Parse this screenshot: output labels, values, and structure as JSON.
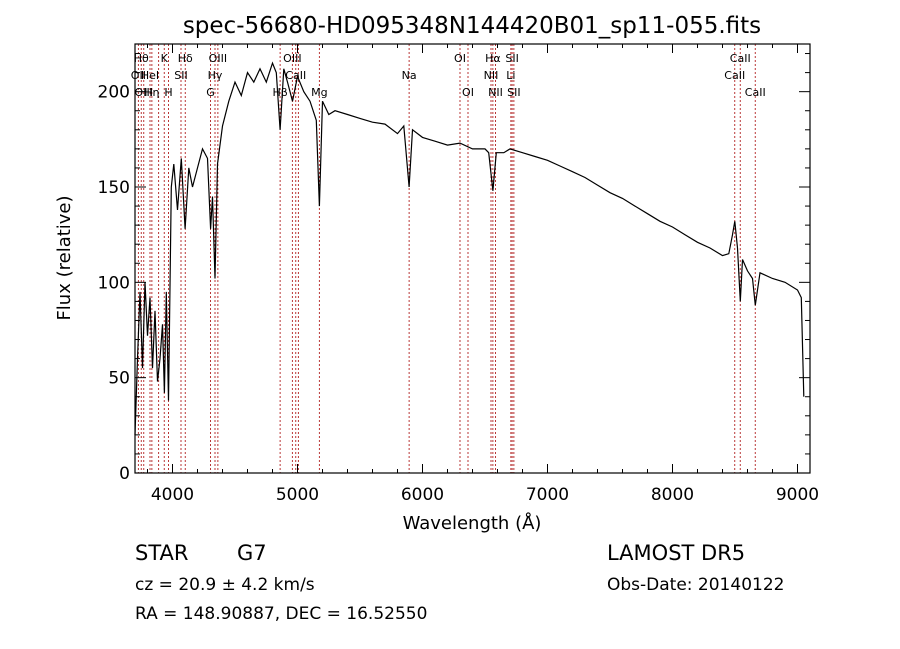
{
  "chart_data": {
    "type": "line",
    "title": "spec-56680-HD095348N144420B01_sp11-055.fits",
    "xlabel": "Wavelength (Å)",
    "ylabel": "Flux (relative)",
    "xlim": [
      3700,
      9100
    ],
    "ylim": [
      0,
      225
    ],
    "xticks": [
      4000,
      5000,
      6000,
      7000,
      8000,
      9000
    ],
    "yticks": [
      0,
      50,
      100,
      150,
      200
    ],
    "grid": false,
    "line_color": "#000000",
    "marker_color": "#b22222",
    "series": [
      {
        "x": [
          3700,
          3720,
          3740,
          3760,
          3780,
          3800,
          3820,
          3840,
          3860,
          3880,
          3900,
          3920,
          3935,
          3950,
          3968,
          3990,
          4010,
          4040,
          4070,
          4101,
          4130,
          4160,
          4200,
          4240,
          4280,
          4305,
          4320,
          4340,
          4360,
          4400,
          4450,
          4500,
          4550,
          4600,
          4650,
          4700,
          4750,
          4800,
          4830,
          4861,
          4890,
          4920,
          4960,
          5000,
          5050,
          5100,
          5150,
          5175,
          5200,
          5250,
          5300,
          5400,
          5500,
          5600,
          5700,
          5800,
          5850,
          5893,
          5920,
          6000,
          6100,
          6200,
          6300,
          6400,
          6500,
          6530,
          6563,
          6590,
          6650,
          6700,
          6800,
          6900,
          7000,
          7100,
          7200,
          7300,
          7400,
          7500,
          7600,
          7700,
          7800,
          7900,
          8000,
          8100,
          8200,
          8300,
          8400,
          8450,
          8480,
          8498,
          8520,
          8542,
          8560,
          8600,
          8640,
          8662,
          8700,
          8800,
          8900,
          9000,
          9030,
          9050
        ],
        "values": [
          20,
          60,
          95,
          55,
          100,
          72,
          92,
          55,
          85,
          48,
          60,
          78,
          42,
          95,
          38,
          150,
          162,
          138,
          165,
          128,
          160,
          150,
          160,
          170,
          165,
          128,
          145,
          102,
          162,
          182,
          195,
          205,
          198,
          210,
          205,
          212,
          205,
          215,
          210,
          180,
          212,
          205,
          195,
          208,
          200,
          195,
          185,
          140,
          195,
          188,
          190,
          188,
          186,
          184,
          183,
          178,
          182,
          150,
          180,
          176,
          174,
          172,
          173,
          170,
          170,
          168,
          148,
          168,
          168,
          170,
          168,
          166,
          164,
          161,
          158,
          155,
          151,
          147,
          144,
          140,
          136,
          132,
          129,
          125,
          121,
          118,
          114,
          115,
          125,
          132,
          118,
          90,
          112,
          106,
          102,
          88,
          105,
          102,
          100,
          96,
          92,
          40
        ]
      }
    ],
    "line_markers": [
      {
        "w": 3750,
        "label": "Hθ",
        "row": 0
      },
      {
        "w": 3727,
        "label": "OII",
        "row": 1
      },
      {
        "w": 3770,
        "label": "OIII",
        "row": 2
      },
      {
        "w": 3820,
        "label": "HeI",
        "row": 1
      },
      {
        "w": 3835,
        "label": "Hη",
        "row": 2
      },
      {
        "w": 3889,
        "label": "",
        "row": 2
      },
      {
        "w": 3934,
        "label": "K",
        "row": 0
      },
      {
        "w": 3968,
        "label": "H",
        "row": 2
      },
      {
        "w": 4068,
        "label": "SII",
        "row": 1
      },
      {
        "w": 4102,
        "label": "Hδ",
        "row": 0
      },
      {
        "w": 4304,
        "label": "G",
        "row": 2
      },
      {
        "w": 4340,
        "label": "Hγ",
        "row": 1
      },
      {
        "w": 4363,
        "label": "OIII",
        "row": 0
      },
      {
        "w": 4861,
        "label": "Hβ",
        "row": 2
      },
      {
        "w": 4959,
        "label": "OIII",
        "row": 0
      },
      {
        "w": 4986,
        "label": "CaII",
        "row": 1
      },
      {
        "w": 5007,
        "label": "",
        "row": 2
      },
      {
        "w": 5175,
        "label": "Mg",
        "row": 2
      },
      {
        "w": 5893,
        "label": "Na",
        "row": 1
      },
      {
        "w": 6300,
        "label": "OI",
        "row": 0
      },
      {
        "w": 6364,
        "label": "OI",
        "row": 2
      },
      {
        "w": 6548,
        "label": "NII",
        "row": 1
      },
      {
        "w": 6563,
        "label": "Hα",
        "row": 0
      },
      {
        "w": 6584,
        "label": "NII",
        "row": 2
      },
      {
        "w": 6707,
        "label": "Li",
        "row": 1
      },
      {
        "w": 6717,
        "label": "SII",
        "row": 0
      },
      {
        "w": 6731,
        "label": "SII",
        "row": 2
      },
      {
        "w": 8498,
        "label": "CaII",
        "row": 1
      },
      {
        "w": 8542,
        "label": "CaII",
        "row": 0
      },
      {
        "w": 8662,
        "label": "CaII",
        "row": 2
      }
    ]
  },
  "info": {
    "object_class": "STAR",
    "subclass": "G7",
    "survey": "LAMOST DR5",
    "cz": "cz = 20.9 ± 4.2 km/s",
    "obs_date": "Obs-Date: 20140122",
    "coords": "RA = 148.90887, DEC =  16.52550"
  }
}
